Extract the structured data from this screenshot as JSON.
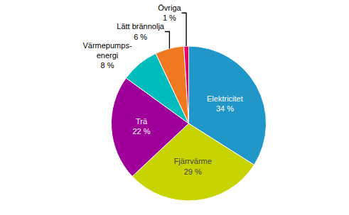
{
  "chart_data": {
    "type": "pie",
    "categories": [
      "Elektricitet\n34 %",
      "Fjärrvärme\n29 %",
      "Trä\n22 %",
      "Värmepumps-\nenergi\n8 %",
      "Lätt brännolja\n6 %",
      "Övriga\n1 %"
    ],
    "values": [
      34,
      29,
      22,
      8,
      6,
      1
    ],
    "colors": [
      "#2196C8",
      "#C8D400",
      "#A0009A",
      "#00BCBC",
      "#F07820",
      "#E8006E"
    ]
  }
}
